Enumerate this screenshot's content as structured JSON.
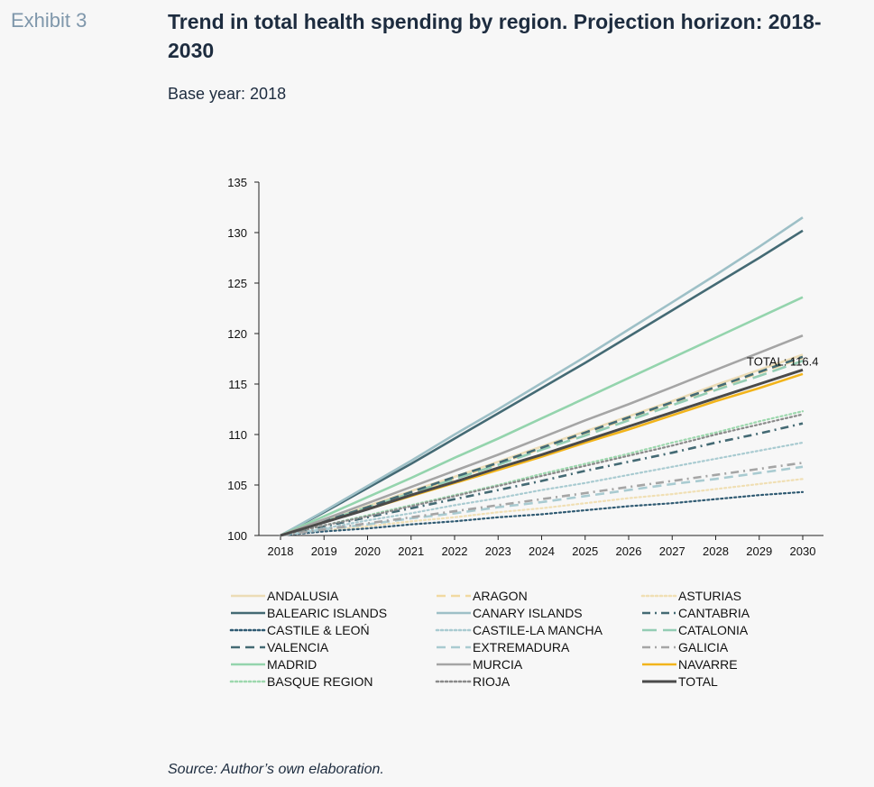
{
  "header": {
    "exhibit": "Exhibit 3",
    "title": "Trend in total health spending by region. Projection horizon: 2018-2030",
    "subtitle": "Base year: 2018"
  },
  "footer": {
    "source": "Source: Author’s own elaboration."
  },
  "chart_data": {
    "type": "line",
    "title": "Trend in total health spending by region. Projection horizon: 2018-2030",
    "subtitle": "Base year: 2018",
    "xlabel": "",
    "ylabel": "",
    "x": [
      2018,
      2019,
      2020,
      2021,
      2022,
      2023,
      2024,
      2025,
      2026,
      2027,
      2028,
      2029,
      2030
    ],
    "xlim": [
      2018,
      2030
    ],
    "ylim": [
      100,
      135
    ],
    "yticks": [
      100,
      105,
      110,
      115,
      120,
      125,
      130,
      135
    ],
    "grid": false,
    "legend_position": "bottom",
    "annotation": "TOTAL: 116.4",
    "series": [
      {
        "name": "ANDALUSIA",
        "color": "#ecdcb6",
        "dash": "solid",
        "values": [
          100,
          101.4,
          102.9,
          104.4,
          105.8,
          107.3,
          108.8,
          110.3,
          111.8,
          113.3,
          114.9,
          116.4,
          117.9
        ]
      },
      {
        "name": "ARAGON",
        "color": "#f1d9a1",
        "dash": "dash",
        "values": [
          100,
          101.4,
          102.8,
          104.2,
          105.6,
          107.1,
          108.6,
          110.1,
          111.6,
          113.1,
          114.6,
          116.1,
          117.6
        ]
      },
      {
        "name": "ASTURIAS",
        "color": "#f0dfb4",
        "dash": "dot",
        "values": [
          100,
          100.5,
          100.9,
          101.4,
          101.8,
          102.3,
          102.7,
          103.2,
          103.7,
          104.1,
          104.6,
          105.1,
          105.6
        ]
      },
      {
        "name": "BALEARIC ISLANDS",
        "color": "#446a74",
        "dash": "solid",
        "values": [
          100,
          102.3,
          104.7,
          107.1,
          109.6,
          112.1,
          114.6,
          117.1,
          119.7,
          122.3,
          124.9,
          127.5,
          130.2
        ]
      },
      {
        "name": "CANARY ISLANDS",
        "color": "#9ec0c7",
        "dash": "solid",
        "values": [
          100,
          102.4,
          104.9,
          107.4,
          110.0,
          112.5,
          115.1,
          117.7,
          120.4,
          123.1,
          125.8,
          128.6,
          131.5
        ]
      },
      {
        "name": "CANTABRIA",
        "color": "#446a74",
        "dash": "dashdot",
        "values": [
          100,
          100.9,
          101.8,
          102.7,
          103.6,
          104.5,
          105.4,
          106.4,
          107.3,
          108.2,
          109.2,
          110.1,
          111.1
        ]
      },
      {
        "name": "CASTILE & LEOŃ",
        "color": "#2f5a72",
        "dash": "dot",
        "values": [
          100,
          100.4,
          100.7,
          101.1,
          101.4,
          101.8,
          102.1,
          102.5,
          102.9,
          103.2,
          103.6,
          104.0,
          104.3
        ]
      },
      {
        "name": "CASTILE-LA MANCHA",
        "color": "#a9cbd1",
        "dash": "dot",
        "values": [
          100,
          100.7,
          101.5,
          102.2,
          103.0,
          103.7,
          104.5,
          105.2,
          106.0,
          106.8,
          107.6,
          108.4,
          109.2
        ]
      },
      {
        "name": "CATALONIA",
        "color": "#94cdb4",
        "dash": "longdash",
        "values": [
          100,
          101.4,
          102.8,
          104.2,
          105.6,
          107.0,
          108.5,
          109.9,
          111.4,
          112.9,
          114.4,
          115.8,
          117.3
        ]
      },
      {
        "name": "VALENCIA",
        "color": "#446a74",
        "dash": "dash",
        "values": [
          100,
          101.4,
          102.8,
          104.3,
          105.8,
          107.2,
          108.7,
          110.2,
          111.7,
          113.2,
          114.7,
          116.2,
          117.7
        ]
      },
      {
        "name": "EXTREMADURA",
        "color": "#a9cbd1",
        "dash": "dash",
        "values": [
          100,
          100.6,
          101.1,
          101.7,
          102.2,
          102.8,
          103.3,
          103.9,
          104.5,
          105.1,
          105.6,
          106.2,
          106.8
        ]
      },
      {
        "name": "GALICIA",
        "color": "#a5a5a5",
        "dash": "dashdot",
        "values": [
          100,
          100.6,
          101.2,
          101.8,
          102.4,
          103.0,
          103.6,
          104.2,
          104.8,
          105.4,
          106.0,
          106.6,
          107.2
        ]
      },
      {
        "name": "MADRID",
        "color": "#94d4ad",
        "dash": "solid",
        "values": [
          100,
          101.9,
          103.8,
          105.7,
          107.7,
          109.6,
          111.6,
          113.6,
          115.6,
          117.6,
          119.6,
          121.6,
          123.6
        ]
      },
      {
        "name": "MURCIA",
        "color": "#a5a5a5",
        "dash": "solid",
        "values": [
          100,
          101.6,
          103.2,
          104.8,
          106.4,
          108.0,
          109.7,
          111.4,
          113.0,
          114.7,
          116.4,
          118.1,
          119.8
        ]
      },
      {
        "name": "NAVARRE",
        "color": "#f2b41b",
        "dash": "solid",
        "values": [
          100,
          101.3,
          102.6,
          103.9,
          105.2,
          106.5,
          107.8,
          109.2,
          110.5,
          111.9,
          113.3,
          114.6,
          116.0
        ]
      },
      {
        "name": "BASQUE REGION",
        "color": "#9dd8ae",
        "dash": "dot",
        "values": [
          100,
          101.0,
          102.0,
          103.0,
          104.0,
          105.0,
          106.1,
          107.1,
          108.1,
          109.2,
          110.2,
          111.3,
          112.3
        ]
      },
      {
        "name": "RIOJA",
        "color": "#8a8a8a",
        "dash": "dot",
        "values": [
          100,
          101.0,
          101.9,
          102.9,
          103.9,
          104.9,
          105.9,
          106.9,
          107.9,
          108.9,
          110.0,
          111.0,
          112.0
        ]
      },
      {
        "name": "TOTAL",
        "color": "#4a4a4a",
        "dash": "solid",
        "values": [
          100,
          101.3,
          102.6,
          104.0,
          105.3,
          106.7,
          108.0,
          109.4,
          110.8,
          112.2,
          113.6,
          115.0,
          116.4
        ]
      }
    ]
  }
}
